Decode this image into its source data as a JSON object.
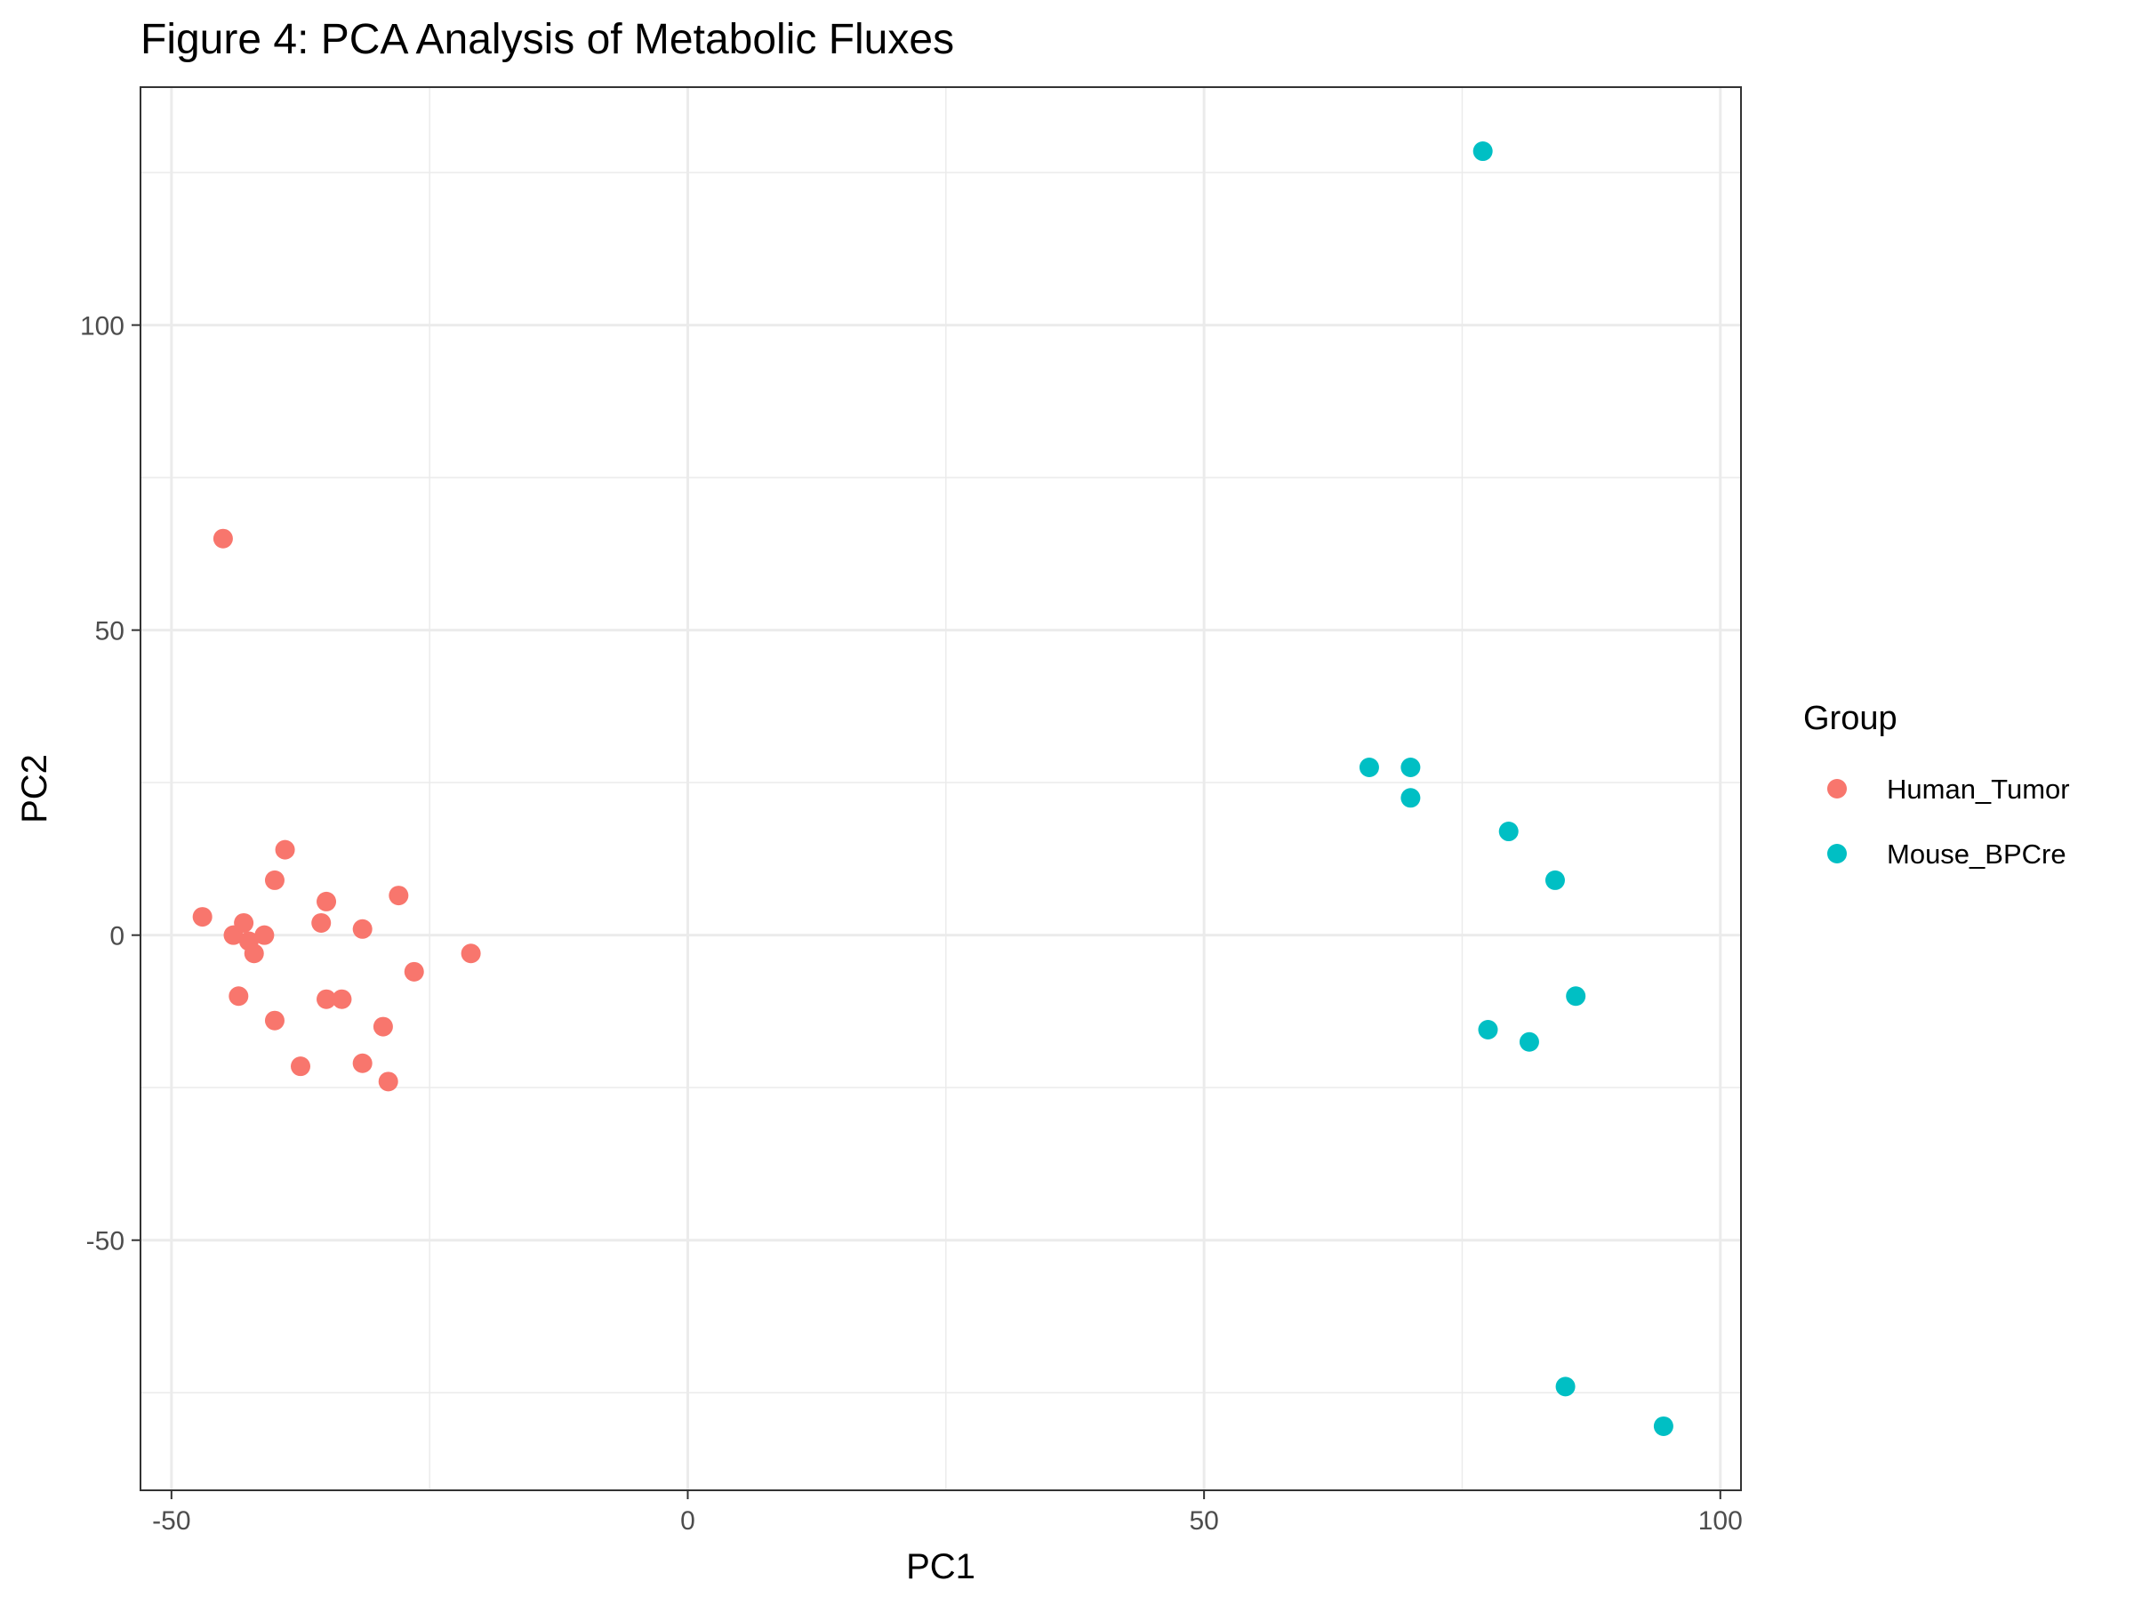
{
  "chart_data": {
    "type": "scatter",
    "title": "Figure 4: PCA Analysis of Metabolic Fluxes",
    "xlabel": "PC1",
    "ylabel": "PC2",
    "xlim": [
      -53,
      102
    ],
    "ylim": [
      -91,
      139
    ],
    "x_ticks": [
      -50,
      0,
      50,
      100
    ],
    "x_tick_labels": [
      "-50",
      "0",
      "50",
      "100"
    ],
    "y_ticks": [
      -50,
      0,
      50,
      100
    ],
    "y_tick_labels": [
      "-50",
      "0",
      "50",
      "100"
    ],
    "x_minor_ticks": [
      -25,
      25,
      75
    ],
    "y_minor_ticks": [
      -75,
      -25,
      25,
      75,
      125
    ],
    "grid": true,
    "legend": {
      "title": "Group",
      "position": "right"
    },
    "series": [
      {
        "name": "Human_Tumor",
        "color": "#F8766D",
        "points": [
          [
            -45,
            65
          ],
          [
            -47,
            3
          ],
          [
            -44,
            0
          ],
          [
            -43,
            2
          ],
          [
            -42.5,
            -1
          ],
          [
            -42,
            -3
          ],
          [
            -41,
            0
          ],
          [
            -39,
            14
          ],
          [
            -40,
            9
          ],
          [
            -43.5,
            -10
          ],
          [
            -40,
            -14
          ],
          [
            -37.5,
            -21.5
          ],
          [
            -35.5,
            2
          ],
          [
            -35,
            5.5
          ],
          [
            -35,
            -10.5
          ],
          [
            -33.5,
            -10.5
          ],
          [
            -31.5,
            1
          ],
          [
            -31.5,
            -21
          ],
          [
            -29.5,
            -15
          ],
          [
            -29,
            -24
          ],
          [
            -28,
            6.5
          ],
          [
            -26.5,
            -6
          ],
          [
            -21,
            -3
          ]
        ]
      },
      {
        "name": "Mouse_BPCre",
        "color": "#00BFC4",
        "points": [
          [
            77,
            128.5
          ],
          [
            66,
            27.5
          ],
          [
            70,
            27.5
          ],
          [
            70,
            22.5
          ],
          [
            79.5,
            17
          ],
          [
            84,
            9
          ],
          [
            86,
            -10
          ],
          [
            77.5,
            -15.5
          ],
          [
            81.5,
            -17.5
          ],
          [
            85,
            -74
          ],
          [
            94.5,
            -80.5
          ]
        ]
      }
    ]
  }
}
